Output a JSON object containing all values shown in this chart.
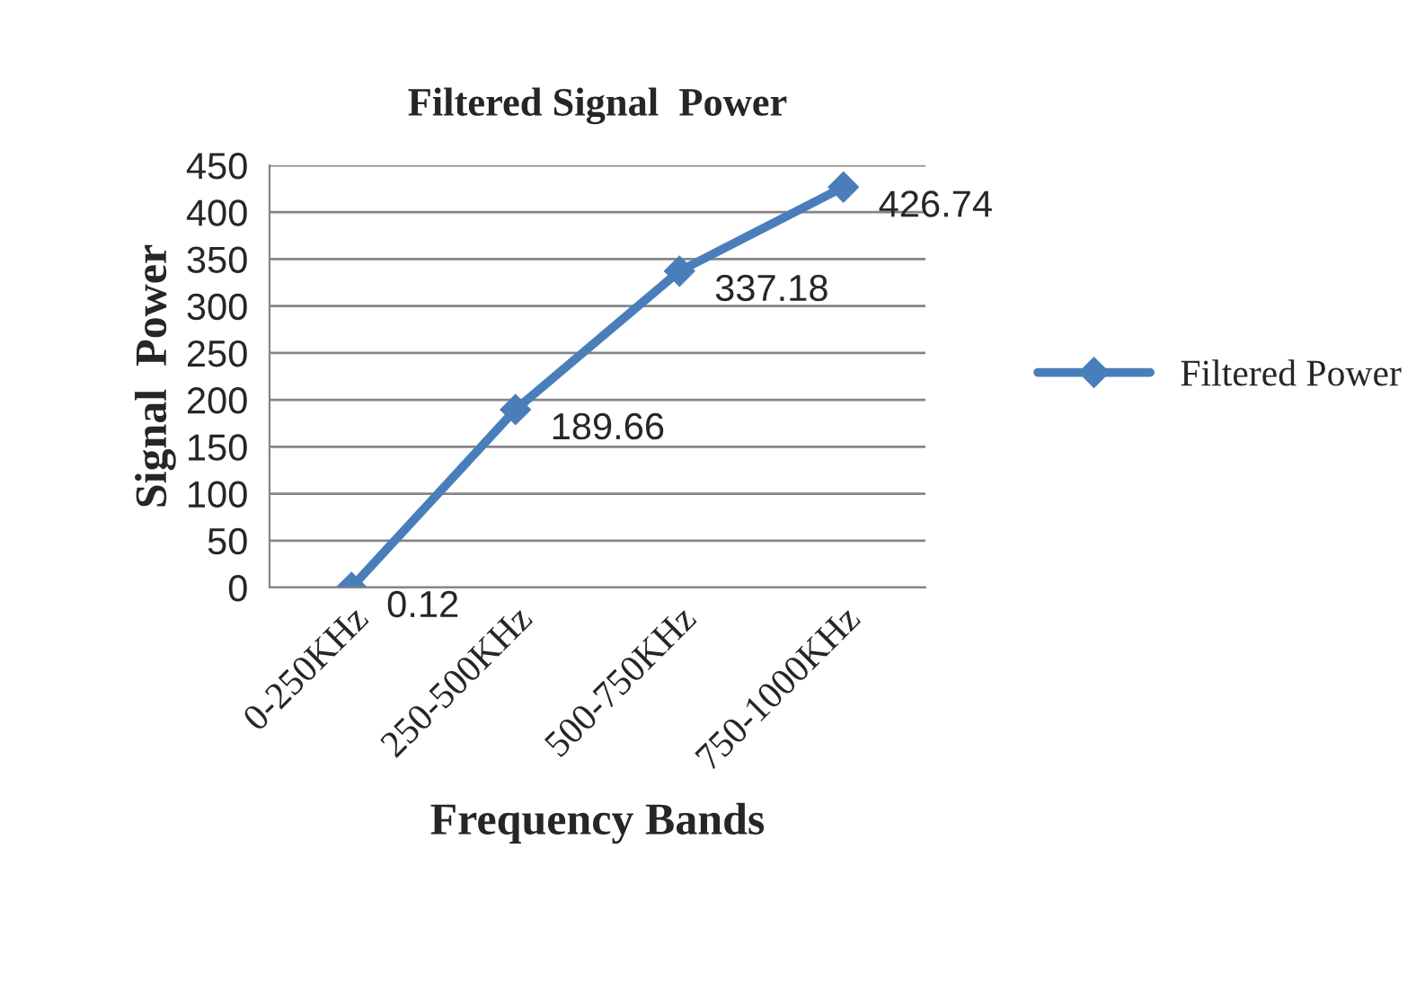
{
  "chart_data": {
    "type": "line",
    "title": "Filtered Signal  Power",
    "xlabel": "Frequency Bands",
    "ylabel": "Signal  Power",
    "categories": [
      "0-250KHz",
      "250-500KHz",
      "500-750KHz",
      "750-1000KHz"
    ],
    "series": [
      {
        "name": "Filtered Power",
        "color": "#4a7ebb",
        "values": [
          0.12,
          189.66,
          337.18,
          426.74
        ]
      }
    ],
    "ylim": [
      0,
      450
    ],
    "yticks": [
      0,
      50,
      100,
      150,
      200,
      250,
      300,
      350,
      400,
      450
    ],
    "grid": "y",
    "legend": "right",
    "marker": "diamond",
    "line_style": "solid",
    "data_labels": true
  }
}
